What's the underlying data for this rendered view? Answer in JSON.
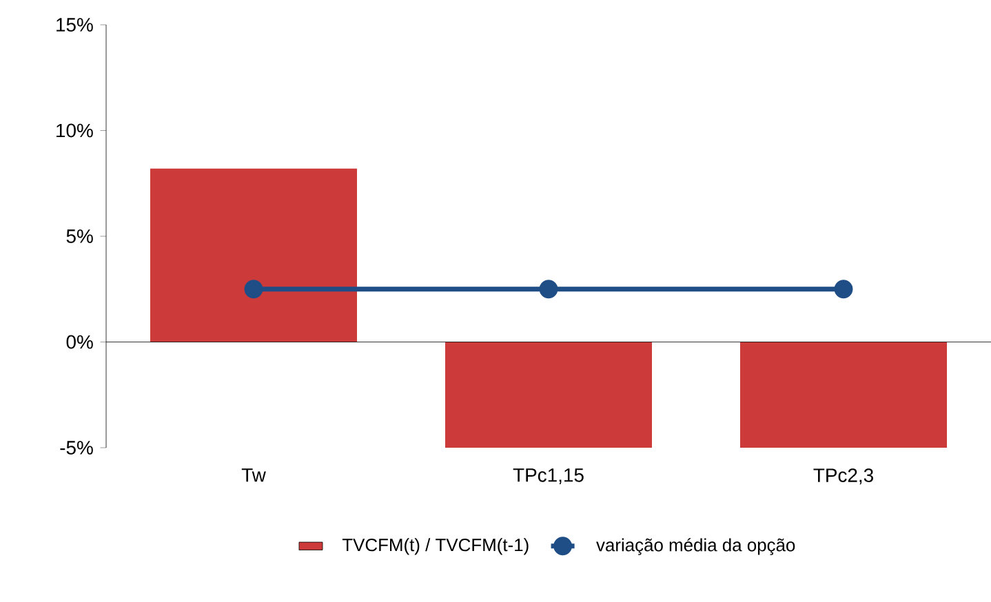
{
  "chart_data": {
    "type": "bar",
    "categories": [
      "Tw",
      "TPc1,15",
      "TPc2,3"
    ],
    "series": [
      {
        "name": "TVCFM(t) / TVCFM(t-1)",
        "color": "#cc3a3a",
        "values": [
          8.2,
          -5,
          -5
        ]
      },
      {
        "name": "variação média da opção",
        "type": "line",
        "color": "#1f4e87",
        "values": [
          2.5,
          2.5,
          2.5
        ],
        "marker": "circle"
      }
    ],
    "ylim": [
      -5,
      15
    ],
    "yticks": [
      {
        "value": -5,
        "label": "-5%"
      },
      {
        "value": 0,
        "label": "0%"
      },
      {
        "value": 5,
        "label": "5%"
      },
      {
        "value": 10,
        "label": "10%"
      },
      {
        "value": 15,
        "label": "15%"
      }
    ],
    "ref_lines": [
      {
        "axis": "y",
        "value": 0,
        "color": "#000000"
      }
    ],
    "legend": "bottom"
  }
}
